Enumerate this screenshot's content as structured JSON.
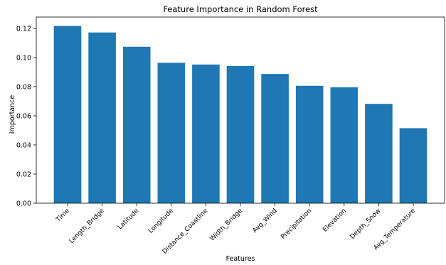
{
  "chart_data": {
    "type": "bar",
    "title": "Feature Importance in Random Forest",
    "xlabel": "Features",
    "ylabel": "Importance",
    "categories": [
      "Time",
      "Length_Bridge",
      "Latitude",
      "Longitude",
      "Distance_Coastline",
      "Width_Bridge",
      "Avg_Wind",
      "Precipitation",
      "Elevation",
      "Depth_Snow",
      "Avg_Temperature"
    ],
    "values": [
      0.1217,
      0.1172,
      0.1074,
      0.0964,
      0.0952,
      0.0942,
      0.0887,
      0.0806,
      0.0796,
      0.0682,
      0.0515
    ],
    "ylim": [
      0,
      0.1278
    ],
    "yticks": [
      0.0,
      0.02,
      0.04,
      0.06,
      0.08,
      0.1,
      0.12
    ],
    "ytick_labels": [
      "0.00",
      "0.02",
      "0.04",
      "0.06",
      "0.08",
      "0.10",
      "0.12"
    ],
    "grid": false,
    "legend": "none",
    "bar_color": "#1f77b4",
    "axis_color": "#000000"
  }
}
